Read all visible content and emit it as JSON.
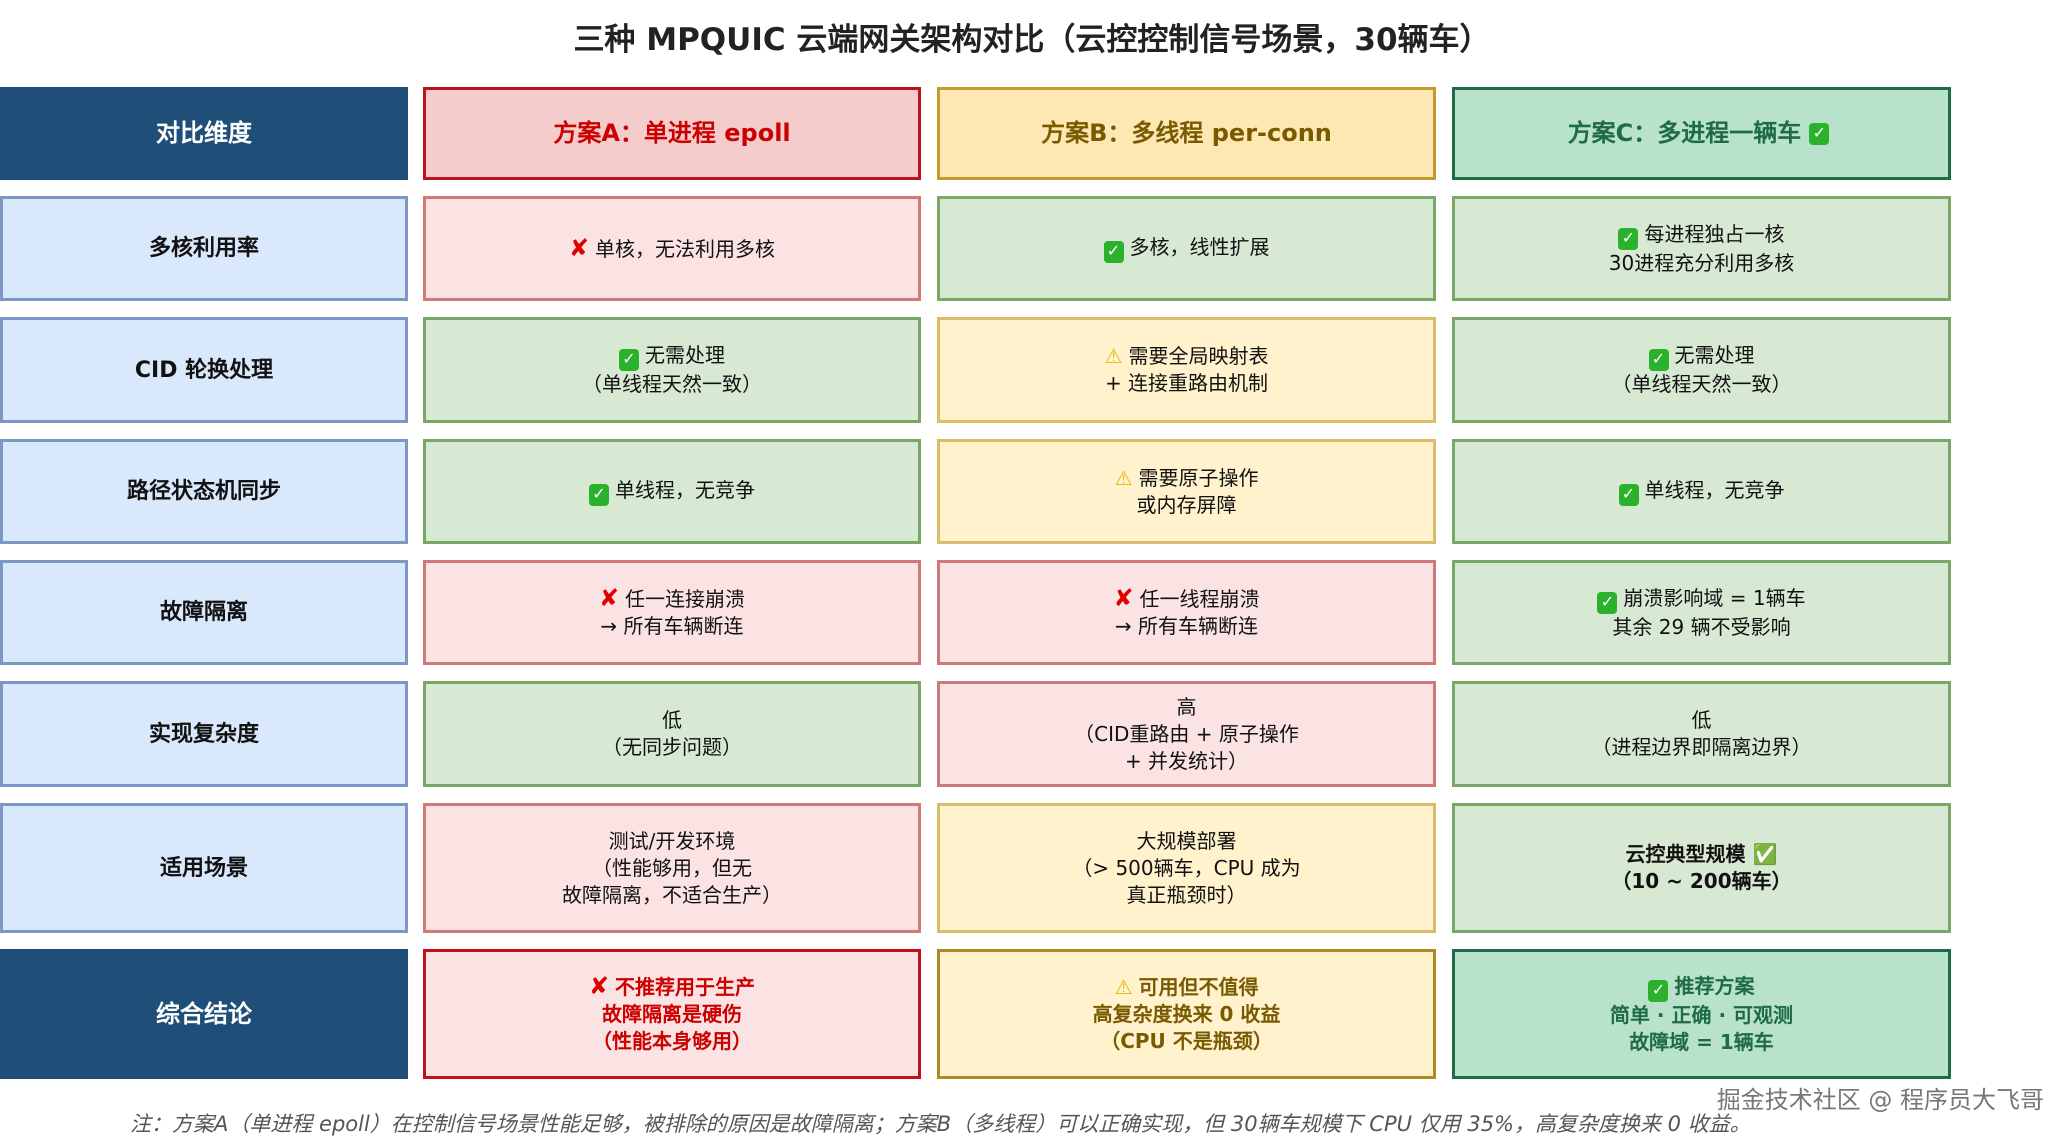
{
  "title": "三种 MPQUIC 云端网关架构对比（云控控制信号场景，30辆车）",
  "colors": {
    "header_dark": "#1f4e79",
    "scheme_a": "#cc0000",
    "scheme_b": "#7a5a00",
    "scheme_c": "#1f6b46"
  },
  "header": {
    "dimension": "对比维度",
    "scheme_a": "方案A：单进程 epoll",
    "scheme_b": "方案B：多线程 per-conn",
    "scheme_c": "方案C：多进程一辆车",
    "scheme_c_icon": "check-icon"
  },
  "rows": [
    {
      "dimension": "多核利用率",
      "cells": [
        {
          "tone": "red",
          "icon": "x-icon",
          "text": "单核，无法利用多核"
        },
        {
          "tone": "green",
          "icon": "check-icon",
          "text": "多核，线性扩展"
        },
        {
          "tone": "green",
          "icon": "check-icon",
          "text": "每进程独占一核\n30进程充分利用多核"
        }
      ]
    },
    {
      "dimension": "CID 轮换处理",
      "cells": [
        {
          "tone": "green",
          "icon": "check-icon",
          "text": "无需处理\n（单线程天然一致）"
        },
        {
          "tone": "yellow",
          "icon": "warning-icon",
          "text": "需要全局映射表\n+ 连接重路由机制"
        },
        {
          "tone": "green",
          "icon": "check-icon",
          "text": "无需处理\n（单线程天然一致）"
        }
      ]
    },
    {
      "dimension": "路径状态机同步",
      "cells": [
        {
          "tone": "green",
          "icon": "check-icon",
          "text": "单线程，无竞争"
        },
        {
          "tone": "yellow",
          "icon": "warning-icon",
          "text": "需要原子操作\n或内存屏障"
        },
        {
          "tone": "green",
          "icon": "check-icon",
          "text": "单线程，无竞争"
        }
      ]
    },
    {
      "dimension": "故障隔离",
      "cells": [
        {
          "tone": "red",
          "icon": "x-icon",
          "text": "任一连接崩溃\n→ 所有车辆断连"
        },
        {
          "tone": "red",
          "icon": "x-icon",
          "text": "任一线程崩溃\n→ 所有车辆断连"
        },
        {
          "tone": "green",
          "icon": "check-icon",
          "text": "崩溃影响域 = 1辆车\n其余 29 辆不受影响"
        }
      ]
    },
    {
      "dimension": "实现复杂度",
      "cells": [
        {
          "tone": "green",
          "icon": "",
          "text": "低\n（无同步问题）"
        },
        {
          "tone": "red",
          "icon": "",
          "text": "高\n（CID重路由 + 原子操作\n+ 并发统计）"
        },
        {
          "tone": "green",
          "icon": "",
          "text": "低\n（进程边界即隔离边界）"
        }
      ]
    },
    {
      "dimension": "适用场景",
      "cells": [
        {
          "tone": "red",
          "icon": "",
          "text": "测试/开发环境\n（性能够用，但无\n故障隔离，不适合生产）"
        },
        {
          "tone": "yellow",
          "icon": "",
          "text": "大规模部署\n（> 500辆车，CPU 成为\n真正瓶颈时）"
        },
        {
          "tone": "green bold",
          "icon": "",
          "text": "云控典型规模 ✅\n（10 ~ 200辆车）"
        }
      ]
    },
    {
      "dimension": "综合结论",
      "cells": [
        {
          "tone": "c-a",
          "icon": "x-icon",
          "text": "不推荐用于生产\n故障隔离是硬伤\n（性能本身够用）"
        },
        {
          "tone": "c-b",
          "icon": "warning-icon",
          "text": "可用但不值得\n高复杂度换来 0 收益\n（CPU 不是瓶颈）"
        },
        {
          "tone": "c-c",
          "icon": "check-icon",
          "text": "推荐方案\n简单 · 正确 · 可观测\n故障域 = 1辆车"
        }
      ]
    }
  ],
  "watermark": "掘金技术社区 @ 程序员大飞哥",
  "footnote": "注：方案A（单进程 epoll）在控制信号场景性能足够，被排除的原因是故障隔离；方案B（多线程）可以正确实现，但 30辆车规模下 CPU 仅用 35%，高复杂度换来 0 收益。"
}
